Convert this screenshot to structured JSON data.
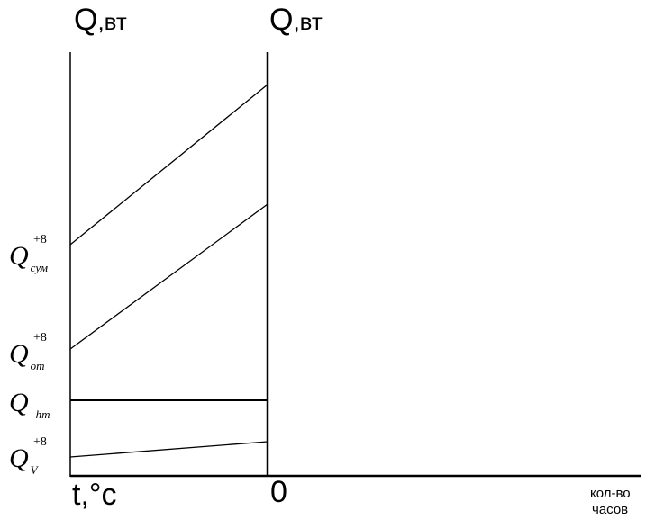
{
  "axes": {
    "left_y_title_main": "Q",
    "left_y_title_unit": ",вт",
    "right_y_title_main": "Q",
    "right_y_title_unit": ",вт",
    "left_x_label": "t,°c",
    "origin_label": "0",
    "right_x_label_line1": "кол-во",
    "right_x_label_line2": "часов"
  },
  "levels": [
    {
      "symbol": "Q",
      "subscript": "сум",
      "superscript": "+8"
    },
    {
      "symbol": "Q",
      "subscript": "от",
      "superscript": "+8"
    },
    {
      "symbol": "Q",
      "subscript": "hm",
      "superscript": ""
    },
    {
      "symbol": "Q",
      "subscript": "V",
      "superscript": "+8"
    }
  ],
  "colors": {
    "line": "#000000",
    "background": "#ffffff"
  }
}
